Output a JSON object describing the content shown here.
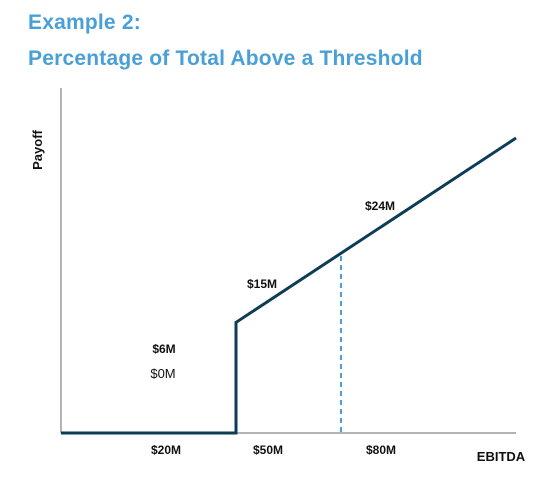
{
  "header": {
    "title_line1": "Example 2:",
    "title_line2": "Percentage of Total Above a Threshold"
  },
  "chart_data": {
    "type": "line",
    "xlabel": "EBITDA",
    "ylabel": "Payoff",
    "x_ticks": [
      "$20M",
      "$50M",
      "$80M"
    ],
    "series": [
      {
        "points": [
          {
            "x": 0,
            "y": 0
          },
          {
            "x": 50,
            "y": 0
          },
          {
            "x": 50,
            "y": 15
          },
          {
            "x": 130,
            "y": 40
          }
        ]
      }
    ],
    "reference_line": {
      "x": 80,
      "y": 24,
      "style": "dashed"
    },
    "annotations": [
      {
        "text": "$24M",
        "x": 80,
        "y": 24
      },
      {
        "text": "$15M",
        "x": 50,
        "y": 15
      },
      {
        "text": "$6M",
        "x": 20,
        "y": 6
      },
      {
        "text": "$0M",
        "x": 20,
        "y": 4
      }
    ],
    "xlim": [
      0,
      130
    ],
    "ylim": [
      0,
      40
    ],
    "colors": {
      "line": "#0d3d56",
      "reference": "#4aa0d6",
      "axis": "#9a9a9a",
      "title": "#4aa0d6"
    }
  }
}
